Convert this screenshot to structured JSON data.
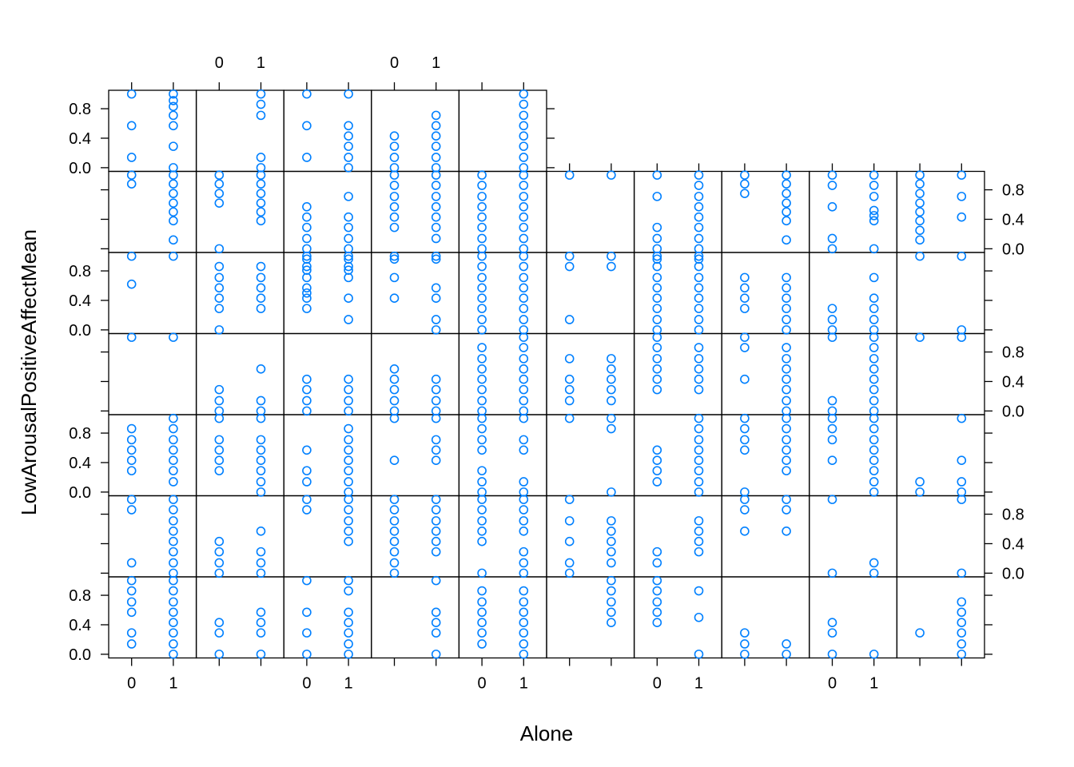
{
  "chart_data": {
    "type": "scatter",
    "layout": {
      "columns": 10,
      "rows": 7
    },
    "xlabel": "Alone",
    "ylabel": "LowArousalPositiveAffectMean",
    "x_tick_labels": [
      "0",
      "1"
    ],
    "x_ticks": [
      0,
      1
    ],
    "xlim": [
      -0.55,
      1.55
    ],
    "y_tick_labels": [
      "0.0",
      "0.4",
      "0.8"
    ],
    "y_ticks": [
      0,
      0.4,
      0.8
    ],
    "ylim": [
      -0.05,
      1.05
    ],
    "point_color": "#0080ff",
    "panels": [
      {
        "row": 0,
        "col": 0,
        "x0": [
          1.0,
          0.57,
          0.14
        ],
        "x1": [
          1.0,
          0.91,
          0.83,
          0.71,
          0.57,
          0.29,
          0.0
        ]
      },
      {
        "row": 0,
        "col": 1,
        "x0": [],
        "x1": [
          1.0,
          0.86,
          0.71,
          0.14,
          0.0
        ]
      },
      {
        "row": 0,
        "col": 2,
        "x0": [
          1.0,
          0.57,
          0.14
        ],
        "x1": [
          1.0,
          0.57,
          0.43,
          0.29,
          0.14,
          0.0
        ]
      },
      {
        "row": 0,
        "col": 3,
        "x0": [
          0.43,
          0.29,
          0.14,
          0.0
        ],
        "x1": [
          0.71,
          0.57,
          0.43,
          0.29,
          0.14,
          0.0
        ]
      },
      {
        "row": 0,
        "col": 4,
        "x0": [],
        "x1": [
          1.0,
          0.86,
          0.71,
          0.57,
          0.43,
          0.29,
          0.14,
          0.0
        ]
      },
      {
        "row": 1,
        "col": 0,
        "x0": [
          1.0,
          0.88
        ],
        "x1": [
          1.0,
          0.88,
          0.75,
          0.62,
          0.5,
          0.38,
          0.12
        ]
      },
      {
        "row": 1,
        "col": 1,
        "x0": [
          1.0,
          0.88,
          0.75,
          0.62,
          0.0
        ],
        "x1": [
          1.0,
          0.88,
          0.75,
          0.62,
          0.5,
          0.38
        ]
      },
      {
        "row": 1,
        "col": 2,
        "x0": [
          0.57,
          0.43,
          0.29,
          0.14,
          0.0,
          -0.14,
          -0.29
        ],
        "x1": [
          0.71,
          0.43,
          0.29,
          0.14,
          0.0,
          -0.14,
          -0.29
        ]
      },
      {
        "row": 1,
        "col": 3,
        "x0": [
          1.0,
          0.86,
          0.71,
          0.57,
          0.43,
          0.29,
          -0.14
        ],
        "x1": [
          1.0,
          0.86,
          0.71,
          0.57,
          0.43,
          0.29,
          0.14,
          -0.14
        ]
      },
      {
        "row": 1,
        "col": 4,
        "x0": [
          1.0,
          0.86,
          0.71,
          0.57,
          0.43,
          0.29,
          0.14,
          0.0
        ],
        "x1": [
          1.0,
          0.86,
          0.71,
          0.57,
          0.43,
          0.29,
          0.14,
          0.0
        ]
      },
      {
        "row": 1,
        "col": 5,
        "x0": [
          1.0
        ],
        "x1": [
          1.0
        ]
      },
      {
        "row": 1,
        "col": 6,
        "x0": [
          1.0,
          0.71,
          0.29,
          0.14,
          0.0,
          -0.14
        ],
        "x1": [
          1.0,
          0.86,
          0.71,
          0.57,
          0.43,
          0.29,
          0.14,
          0.0,
          -0.14
        ]
      },
      {
        "row": 1,
        "col": 7,
        "x0": [
          1.0,
          0.88,
          0.75
        ],
        "x1": [
          1.0,
          0.88,
          0.75,
          0.62,
          0.5,
          0.38,
          0.12
        ]
      },
      {
        "row": 1,
        "col": 8,
        "x0": [
          1.0,
          0.86,
          0.57,
          0.14,
          0.0
        ],
        "x1": [
          1.0,
          0.86,
          0.71,
          0.52,
          0.45,
          0.38,
          0.0
        ]
      },
      {
        "row": 1,
        "col": 9,
        "x0": [
          1.0,
          0.88,
          0.75,
          0.62,
          0.5,
          0.38,
          0.25,
          0.12
        ],
        "x1": [
          1.0,
          0.71,
          0.43
        ]
      },
      {
        "row": 2,
        "col": 0,
        "x0": [
          1.0,
          0.62
        ],
        "x1": [
          1.0
        ]
      },
      {
        "row": 2,
        "col": 1,
        "x0": [
          0.86,
          0.71,
          0.57,
          0.43,
          0.29,
          0.0
        ],
        "x1": [
          0.86,
          0.71,
          0.57,
          0.43,
          0.29
        ]
      },
      {
        "row": 2,
        "col": 2,
        "x0": [
          1.0,
          0.86,
          0.71,
          0.57,
          0.5,
          0.43,
          0.29
        ],
        "x1": [
          1.0,
          0.86,
          0.71,
          0.43,
          0.14
        ]
      },
      {
        "row": 2,
        "col": 3,
        "x0": [
          1.0,
          0.71,
          0.43
        ],
        "x1": [
          1.0,
          0.57,
          0.43,
          0.14,
          0.0
        ]
      },
      {
        "row": 2,
        "col": 4,
        "x0": [
          1.0,
          0.86,
          0.71,
          0.57,
          0.43,
          0.29,
          0.14,
          0.0
        ],
        "x1": [
          1.0,
          0.86,
          0.71,
          0.57,
          0.43,
          0.29,
          0.14,
          0.0
        ]
      },
      {
        "row": 2,
        "col": 5,
        "x0": [
          1.0,
          0.86,
          0.14
        ],
        "x1": [
          1.0,
          0.86
        ]
      },
      {
        "row": 2,
        "col": 6,
        "x0": [
          1.0,
          0.86,
          0.71,
          0.57,
          0.43,
          0.29,
          0.14,
          0.0
        ],
        "x1": [
          1.0,
          0.86,
          0.71,
          0.57,
          0.43,
          0.29,
          0.14,
          0.0
        ]
      },
      {
        "row": 2,
        "col": 7,
        "x0": [
          0.71,
          0.57,
          0.43,
          0.29
        ],
        "x1": [
          0.71,
          0.57,
          0.43,
          0.29,
          0.14,
          0.0
        ]
      },
      {
        "row": 2,
        "col": 8,
        "x0": [
          0.29,
          0.14,
          0.0
        ],
        "x1": [
          0.71,
          0.43,
          0.29,
          0.14,
          0.0
        ]
      },
      {
        "row": 2,
        "col": 9,
        "x0": [
          1.0
        ],
        "x1": [
          1.0,
          0.0
        ]
      },
      {
        "row": 3,
        "col": 0,
        "x0": [
          1.0
        ],
        "x1": [
          1.0
        ]
      },
      {
        "row": 3,
        "col": 1,
        "x0": [
          0.29,
          0.14,
          0.0
        ],
        "x1": [
          0.57,
          0.14,
          0.0
        ]
      },
      {
        "row": 3,
        "col": 2,
        "x0": [
          0.43,
          0.29,
          0.14,
          0.0
        ],
        "x1": [
          0.43,
          0.29,
          0.14,
          0.0
        ]
      },
      {
        "row": 3,
        "col": 3,
        "x0": [
          0.57,
          0.43,
          0.29,
          0.14,
          0.0
        ],
        "x1": [
          0.43,
          0.29,
          0.14,
          0.0
        ]
      },
      {
        "row": 3,
        "col": 4,
        "x0": [
          0.86,
          0.71,
          0.57,
          0.43,
          0.29,
          0.14,
          0.0
        ],
        "x1": [
          1.0,
          0.86,
          0.71,
          0.57,
          0.43,
          0.29,
          0.14,
          0.0
        ]
      },
      {
        "row": 3,
        "col": 5,
        "x0": [
          0.71,
          0.43,
          0.29,
          0.14
        ],
        "x1": [
          0.71,
          0.57,
          0.43,
          0.29,
          0.14
        ]
      },
      {
        "row": 3,
        "col": 6,
        "x0": [
          1.0,
          0.86,
          0.71,
          0.57,
          0.43,
          0.29
        ],
        "x1": [
          0.86,
          0.71,
          0.57,
          0.43,
          0.29
        ]
      },
      {
        "row": 3,
        "col": 7,
        "x0": [
          1.0,
          0.86,
          0.43
        ],
        "x1": [
          0.86,
          0.71,
          0.57,
          0.43,
          0.29,
          0.14,
          0.0
        ]
      },
      {
        "row": 3,
        "col": 8,
        "x0": [
          1.0,
          0.14,
          0.0
        ],
        "x1": [
          1.0,
          0.86,
          0.71,
          0.57,
          0.43,
          0.29,
          0.14,
          0.0
        ]
      },
      {
        "row": 3,
        "col": 9,
        "x0": [
          1.0
        ],
        "x1": [
          1.0
        ]
      },
      {
        "row": 4,
        "col": 0,
        "x0": [
          0.86,
          0.71,
          0.57,
          0.43,
          0.29
        ],
        "x1": [
          1.0,
          0.86,
          0.71,
          0.57,
          0.43,
          0.29,
          0.14
        ]
      },
      {
        "row": 4,
        "col": 1,
        "x0": [
          1.0,
          0.71,
          0.57,
          0.43,
          0.29
        ],
        "x1": [
          1.0,
          0.71,
          0.57,
          0.43,
          0.29,
          0.14,
          0.0
        ]
      },
      {
        "row": 4,
        "col": 2,
        "x0": [
          0.57,
          0.29,
          0.14
        ],
        "x1": [
          0.86,
          0.71,
          0.57,
          0.43,
          0.29,
          0.14,
          0.0
        ]
      },
      {
        "row": 4,
        "col": 3,
        "x0": [
          1.0,
          0.43
        ],
        "x1": [
          1.0,
          0.71,
          0.57,
          0.43
        ]
      },
      {
        "row": 4,
        "col": 4,
        "x0": [
          1.0,
          0.86,
          0.71,
          0.57,
          0.29,
          0.14,
          0.0
        ],
        "x1": [
          1.0,
          0.71,
          0.57,
          0.14,
          0.0
        ]
      },
      {
        "row": 4,
        "col": 5,
        "x0": [
          1.0
        ],
        "x1": [
          1.0,
          0.86,
          0.0
        ]
      },
      {
        "row": 4,
        "col": 6,
        "x0": [
          0.57,
          0.43,
          0.29,
          0.14
        ],
        "x1": [
          1.0,
          0.86,
          0.71,
          0.57,
          0.43,
          0.29,
          0.14,
          0.0
        ]
      },
      {
        "row": 4,
        "col": 7,
        "x0": [
          1.0,
          0.86,
          0.71,
          0.57,
          0.0
        ],
        "x1": [
          1.0,
          0.86,
          0.71,
          0.57,
          0.43,
          0.29
        ]
      },
      {
        "row": 4,
        "col": 8,
        "x0": [
          1.0,
          0.86,
          0.71,
          0.43
        ],
        "x1": [
          1.0,
          0.86,
          0.71,
          0.57,
          0.43,
          0.29,
          0.14,
          0.0
        ]
      },
      {
        "row": 4,
        "col": 9,
        "x0": [
          0.14,
          0.0
        ],
        "x1": [
          1.0,
          0.43,
          0.14,
          0.0
        ]
      },
      {
        "row": 5,
        "col": 0,
        "x0": [
          1.0,
          0.86,
          0.14
        ],
        "x1": [
          1.0,
          0.86,
          0.71,
          0.57,
          0.43,
          0.29,
          0.14,
          0.0
        ]
      },
      {
        "row": 5,
        "col": 1,
        "x0": [
          0.43,
          0.29,
          0.14,
          0.0
        ],
        "x1": [
          0.57,
          0.29,
          0.14,
          0.0
        ]
      },
      {
        "row": 5,
        "col": 2,
        "x0": [
          1.0,
          0.86
        ],
        "x1": [
          1.0,
          0.86,
          0.71,
          0.57,
          0.43
        ]
      },
      {
        "row": 5,
        "col": 3,
        "x0": [
          1.0,
          0.86,
          0.71,
          0.57,
          0.43,
          0.29,
          0.14,
          0.0
        ],
        "x1": [
          1.0,
          0.86,
          0.71,
          0.57,
          0.43,
          0.29
        ]
      },
      {
        "row": 5,
        "col": 4,
        "x0": [
          1.0,
          0.86,
          0.71,
          0.57,
          0.43,
          0.0
        ],
        "x1": [
          1.0,
          0.86,
          0.71,
          0.57,
          0.29,
          0.14,
          0.0
        ]
      },
      {
        "row": 5,
        "col": 5,
        "x0": [
          1.0,
          0.71,
          0.43,
          0.14,
          0.0
        ],
        "x1": [
          0.71,
          0.57,
          0.43,
          0.29,
          0.14
        ]
      },
      {
        "row": 5,
        "col": 6,
        "x0": [
          0.29,
          0.14
        ],
        "x1": [
          0.71,
          0.57,
          0.43,
          0.29
        ]
      },
      {
        "row": 5,
        "col": 7,
        "x0": [
          1.0,
          0.86,
          0.57
        ],
        "x1": [
          1.0,
          0.86,
          0.57
        ]
      },
      {
        "row": 5,
        "col": 8,
        "x0": [
          1.0,
          0.0
        ],
        "x1": [
          0.14,
          0.0
        ]
      },
      {
        "row": 5,
        "col": 9,
        "x0": [],
        "x1": [
          1.0,
          0.0
        ]
      },
      {
        "row": 6,
        "col": 0,
        "x0": [
          1.0,
          0.86,
          0.71,
          0.57,
          0.29,
          0.14
        ],
        "x1": [
          1.0,
          0.86,
          0.71,
          0.57,
          0.43,
          0.29,
          0.14,
          0.0
        ]
      },
      {
        "row": 6,
        "col": 1,
        "x0": [
          0.43,
          0.29,
          0.0
        ],
        "x1": [
          0.57,
          0.43,
          0.29,
          0.0
        ]
      },
      {
        "row": 6,
        "col": 2,
        "x0": [
          1.0,
          0.57,
          0.29,
          0.0
        ],
        "x1": [
          1.0,
          0.86,
          0.57,
          0.43,
          0.29,
          0.14,
          0.0
        ]
      },
      {
        "row": 6,
        "col": 3,
        "x0": [],
        "x1": [
          1.0,
          0.57,
          0.43,
          0.29,
          0.0
        ]
      },
      {
        "row": 6,
        "col": 4,
        "x0": [
          0.86,
          0.71,
          0.57,
          0.43,
          0.29,
          0.14
        ],
        "x1": [
          0.86,
          0.71,
          0.57,
          0.43,
          0.29,
          0.14,
          0.0
        ]
      },
      {
        "row": 6,
        "col": 5,
        "x0": [],
        "x1": [
          1.0,
          0.86,
          0.71,
          0.57,
          0.43
        ]
      },
      {
        "row": 6,
        "col": 6,
        "x0": [
          1.0,
          0.86,
          0.71,
          0.57,
          0.43
        ],
        "x1": [
          0.86,
          0.5,
          0.0
        ]
      },
      {
        "row": 6,
        "col": 7,
        "x0": [
          0.29,
          0.14,
          0.0
        ],
        "x1": [
          0.14,
          0.0
        ]
      },
      {
        "row": 6,
        "col": 8,
        "x0": [
          0.43,
          0.29,
          0.0
        ],
        "x1": [
          0.0
        ]
      },
      {
        "row": 6,
        "col": 9,
        "x0": [
          0.29
        ],
        "x1": [
          0.71,
          0.57,
          0.43,
          0.29,
          0.14,
          0.0
        ]
      }
    ]
  }
}
